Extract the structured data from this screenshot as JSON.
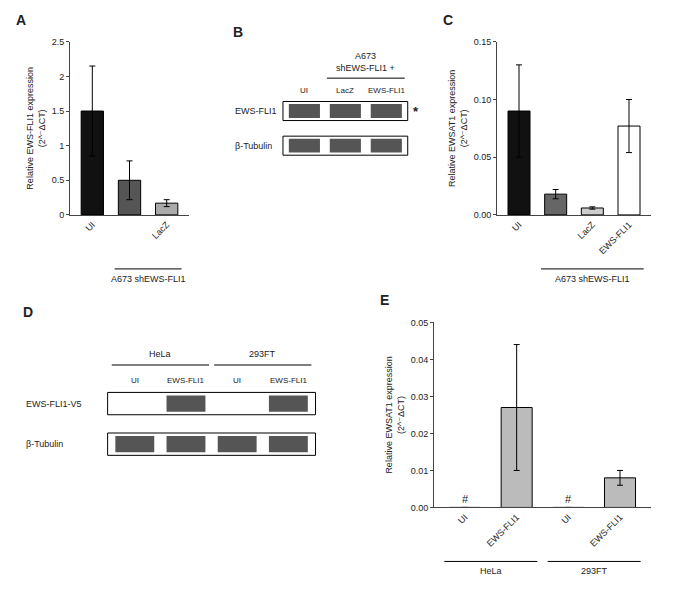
{
  "chart_data": [
    {
      "type": "bar",
      "title": "A",
      "categories": [
        "UI",
        null,
        "LacZ"
      ],
      "values": [
        1.5,
        0.5,
        0.17
      ],
      "errors": [
        0.65,
        0.28,
        0.05
      ],
      "colors": [
        "#111111",
        "#555555",
        "#aaaaaa"
      ],
      "ylabel": "Relative EWS-FLI1 expression\n(2^⁻ΔCT)",
      "ylim": [
        0,
        2.5
      ],
      "yticks": [
        0,
        0.5,
        1,
        1.5,
        2,
        2.5
      ],
      "grid": false,
      "groups": [
        {
          "label": "A673 shEWS-FLI1",
          "start": 1,
          "end": 2
        }
      ]
    },
    {
      "type": "blot",
      "title": "B",
      "lanes": [
        "UI",
        "LacZ",
        "EWS-FLI1"
      ],
      "groups": [
        {
          "label": "A673\nshEWS-FLI1 +",
          "start": 1,
          "end": 2
        }
      ],
      "rows": [
        {
          "name": "EWS-FLI1",
          "bands": [
            true,
            true,
            true
          ],
          "note": "*"
        },
        {
          "name": "β-Tubulin",
          "bands": [
            true,
            true,
            true
          ]
        }
      ]
    },
    {
      "type": "bar",
      "title": "C",
      "categories": [
        "UI",
        null,
        "LacZ",
        "EWS-FLI1"
      ],
      "values": [
        0.09,
        0.018,
        0.006,
        0.077
      ],
      "errors": [
        0.04,
        0.004,
        0.001,
        0.023
      ],
      "colors": [
        "#111111",
        "#666666",
        "#cccccc",
        "#ffffff"
      ],
      "ylabel": "Relative EWSAT1 expression\n(2^⁻ΔCT)",
      "ylim": [
        0,
        0.15
      ],
      "yticks": [
        {
          "value": 0,
          "label": "0.00"
        },
        0.05,
        {
          "value": 0.1,
          "label": "0.10"
        },
        0.15
      ],
      "grid": false,
      "groups": [
        {
          "label": "A673 shEWS-FLI1",
          "start": 1,
          "end": 3
        }
      ]
    },
    {
      "type": "blot",
      "title": "D",
      "lanes": [
        "UI",
        "EWS-FLI1",
        "UI",
        "EWS-FLI1"
      ],
      "groups": [
        {
          "label": "HeLa",
          "start": 0,
          "end": 1
        },
        {
          "label": "293FT",
          "start": 2,
          "end": 3
        }
      ],
      "rows": [
        {
          "name": "EWS-FLI1-V5",
          "bands": [
            false,
            true,
            false,
            true
          ]
        },
        {
          "name": "β-Tubulin",
          "bands": [
            true,
            true,
            true,
            true
          ]
        }
      ]
    },
    {
      "type": "bar",
      "title": "E",
      "categories": [
        "UI",
        "EWS-FLI1",
        "UI",
        "EWS-FLI1"
      ],
      "values": [
        0.0,
        0.027,
        0.0,
        0.008
      ],
      "errors": [
        0.0,
        0.017,
        0.0,
        0.002
      ],
      "colors": [
        "#bbbbbb",
        "#bbbbbb",
        "#bbbbbb",
        "#bbbbbb"
      ],
      "ylabel": "Relative EWSAT1 expression\n(2^⁻ΔCT)",
      "ylim": [
        0,
        0.05
      ],
      "yticks": [
        {
          "value": 0,
          "label": "0.00"
        },
        0.01,
        0.02,
        0.03,
        0.04,
        0.05
      ],
      "grid": false,
      "groups": [
        {
          "label": "HeLa",
          "start": 0,
          "end": 1
        },
        {
          "label": "293FT",
          "start": 2,
          "end": 3
        }
      ],
      "annotations": [
        {
          "text": "#",
          "index": 0
        },
        {
          "text": "#",
          "index": 2
        }
      ]
    }
  ]
}
